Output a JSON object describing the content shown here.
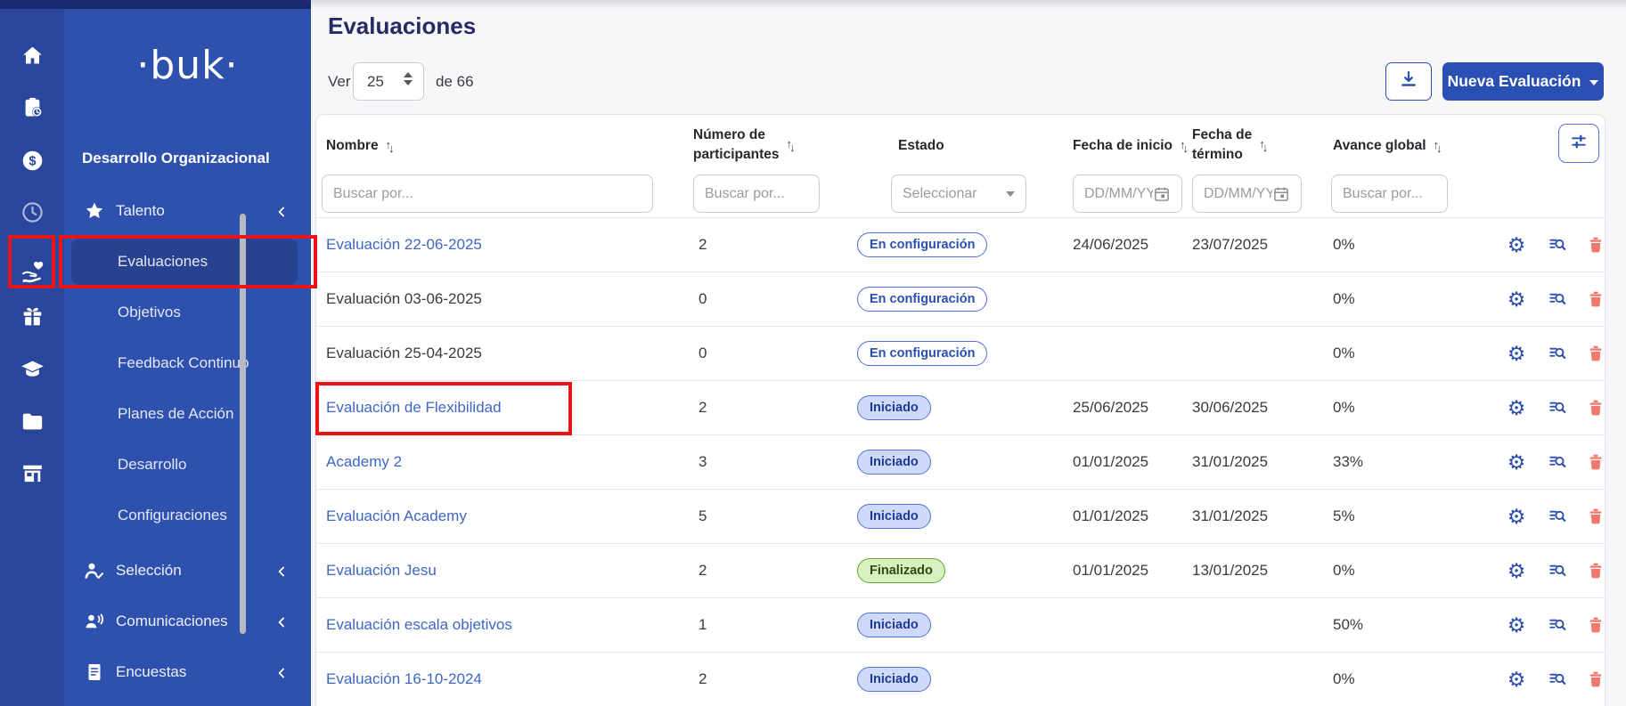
{
  "colors": {
    "topbar": "#18296e",
    "rail": "#2a459c",
    "sidebar": "#2f51ae",
    "sidebar_active": "#28428f",
    "accent": "#2b50b4",
    "link": "#3e66c4",
    "trash": "#f0786c",
    "badge_config_text": "#2b50b4",
    "badge_started_bg": "#cfd9f9",
    "badge_finished_bg": "#d8f1c0",
    "annotation_red": "#ea1417"
  },
  "rail": {
    "items": [
      {
        "icon": "home-icon"
      },
      {
        "icon": "clipboard-clock-icon"
      },
      {
        "icon": "dollar-circle-icon"
      },
      {
        "icon": "clock-icon",
        "dim": true
      },
      {
        "icon": "hand-heart-icon"
      },
      {
        "icon": "gift-icon"
      },
      {
        "icon": "graduation-cap-icon"
      },
      {
        "icon": "folder-icon"
      },
      {
        "icon": "storefront-icon"
      }
    ]
  },
  "sidebar": {
    "logo": "·buk·",
    "company": "Desarrollo Organizacional",
    "items": [
      {
        "label": "Talento",
        "icon": "star-icon",
        "chevron": true,
        "type": "group"
      },
      {
        "label": "Evaluaciones",
        "type": "sub",
        "active": true
      },
      {
        "label": "Objetivos",
        "type": "sub"
      },
      {
        "label": "Feedback Continuo",
        "type": "sub"
      },
      {
        "label": "Planes de Acción",
        "type": "sub"
      },
      {
        "label": "Desarrollo",
        "type": "sub"
      },
      {
        "label": "Configuraciones",
        "type": "sub"
      },
      {
        "label": "Selección",
        "icon": "person-check-icon",
        "chevron": true,
        "type": "group"
      },
      {
        "label": "Comunicaciones",
        "icon": "announcement-icon",
        "chevron": true,
        "type": "group"
      },
      {
        "label": "Encuestas",
        "icon": "document-icon",
        "chevron": true,
        "type": "group"
      }
    ]
  },
  "header": {
    "title": "Evaluaciones",
    "ver_label": "Ver",
    "page_size": "25",
    "of_label": "de 66",
    "download_icon": "download-icon",
    "new_button_label": "Nueva Evaluación"
  },
  "table": {
    "columns": [
      {
        "label": "Nombre",
        "sortable": true,
        "two_line": false
      },
      {
        "label": "Número de\nparticipantes",
        "sortable": true,
        "two_line": true
      },
      {
        "label": "Estado",
        "sortable": false,
        "two_line": false
      },
      {
        "label": "Fecha de inicio",
        "sortable": true,
        "two_line": false
      },
      {
        "label": "Fecha de\ntérmino",
        "sortable": true,
        "two_line": true
      },
      {
        "label": "Avance global",
        "sortable": true,
        "two_line": false
      }
    ],
    "filters": [
      {
        "kind": "text",
        "placeholder": "Buscar por...",
        "name": "filter-nombre"
      },
      {
        "kind": "text",
        "placeholder": "Buscar por...",
        "name": "filter-participantes"
      },
      {
        "kind": "select",
        "placeholder": "Seleccionar",
        "name": "filter-estado"
      },
      {
        "kind": "date",
        "placeholder": "DD/MM/YY",
        "name": "filter-fecha-inicio"
      },
      {
        "kind": "date",
        "placeholder": "DD/MM/YY",
        "name": "filter-fecha-termino"
      },
      {
        "kind": "text",
        "placeholder": "Buscar por...",
        "name": "filter-avance"
      }
    ],
    "filter_sliders_icon": "sliders-icon",
    "row_actions": [
      "gear-icon",
      "list-search-icon",
      "trash-icon"
    ],
    "rows": [
      {
        "name": "Evaluación 22-06-2025",
        "is_link": true,
        "participants": "2",
        "status": "En configuración",
        "status_type": "config",
        "start_date": "24/06/2025",
        "end_date": "23/07/2025",
        "progress": "0%",
        "highlighted": false
      },
      {
        "name": "Evaluación 03-06-2025",
        "is_link": false,
        "participants": "0",
        "status": "En configuración",
        "status_type": "config",
        "start_date": "",
        "end_date": "",
        "progress": "0%",
        "highlighted": false
      },
      {
        "name": "Evaluación 25-04-2025",
        "is_link": false,
        "participants": "0",
        "status": "En configuración",
        "status_type": "config",
        "start_date": "",
        "end_date": "",
        "progress": "0%",
        "highlighted": false
      },
      {
        "name": "Evaluación de Flexibilidad",
        "is_link": true,
        "participants": "2",
        "status": "Iniciado",
        "status_type": "started",
        "start_date": "25/06/2025",
        "end_date": "30/06/2025",
        "progress": "0%",
        "highlighted": true
      },
      {
        "name": "Academy 2",
        "is_link": true,
        "participants": "3",
        "status": "Iniciado",
        "status_type": "started",
        "start_date": "01/01/2025",
        "end_date": "31/01/2025",
        "progress": "33%",
        "highlighted": false
      },
      {
        "name": "Evaluación Academy",
        "is_link": true,
        "participants": "5",
        "status": "Iniciado",
        "status_type": "started",
        "start_date": "01/01/2025",
        "end_date": "31/01/2025",
        "progress": "5%",
        "highlighted": false
      },
      {
        "name": "Evaluación Jesu",
        "is_link": true,
        "participants": "2",
        "status": "Finalizado",
        "status_type": "finished",
        "start_date": "01/01/2025",
        "end_date": "13/01/2025",
        "progress": "0%",
        "highlighted": false
      },
      {
        "name": "Evaluación escala objetivos",
        "is_link": true,
        "participants": "1",
        "status": "Iniciado",
        "status_type": "started",
        "start_date": "",
        "end_date": "",
        "progress": "50%",
        "highlighted": false
      },
      {
        "name": "Evaluación 16-10-2024",
        "is_link": true,
        "participants": "2",
        "status": "Iniciado",
        "status_type": "started",
        "start_date": "",
        "end_date": "",
        "progress": "0%",
        "highlighted": false
      }
    ]
  }
}
